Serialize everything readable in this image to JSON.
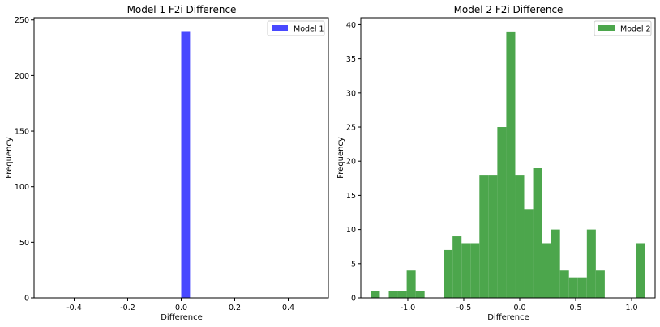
{
  "chart_data": [
    {
      "type": "bar",
      "title": "Model 1 F2i Difference",
      "xlabel": "Difference",
      "ylabel": "Frequency",
      "xlim": [
        -0.55,
        0.55
      ],
      "ylim": [
        0,
        252
      ],
      "xticks": [
        -0.4,
        -0.2,
        0.0,
        0.2,
        0.4
      ],
      "xtick_labels": [
        "-0.4",
        "-0.2",
        "0.0",
        "0.2",
        "0.4"
      ],
      "yticks": [
        0,
        50,
        100,
        150,
        200,
        250
      ],
      "ytick_labels": [
        "0",
        "50",
        "100",
        "150",
        "200",
        "250"
      ],
      "legend_position": "top-right",
      "series": [
        {
          "name": "Model 1",
          "color": "#4848ff",
          "bins": [
            {
              "x0": 0.0,
              "x1": 0.033,
              "count": 240
            }
          ]
        }
      ]
    },
    {
      "type": "bar",
      "title": "Model 2 F2i Difference",
      "xlabel": "Difference",
      "ylabel": "Frequency",
      "xlim": [
        -1.42,
        1.21
      ],
      "ylim": [
        0,
        41
      ],
      "xticks": [
        -1.0,
        -0.5,
        0.0,
        0.5,
        1.0
      ],
      "xtick_labels": [
        "-1.0",
        "-0.5",
        "0.0",
        "0.5",
        "1.0"
      ],
      "yticks": [
        0,
        5,
        10,
        15,
        20,
        25,
        30,
        35,
        40
      ],
      "ytick_labels": [
        "0",
        "5",
        "10",
        "15",
        "20",
        "25",
        "30",
        "35",
        "40"
      ],
      "legend_position": "top-right",
      "series": [
        {
          "name": "Model 2",
          "color": "#4ca64c",
          "bins": [
            {
              "x0": -1.33,
              "x1": -1.25,
              "count": 1
            },
            {
              "x0": -1.17,
              "x1": -1.09,
              "count": 1
            },
            {
              "x0": -1.09,
              "x1": -1.01,
              "count": 1
            },
            {
              "x0": -1.01,
              "x1": -0.93,
              "count": 4
            },
            {
              "x0": -0.93,
              "x1": -0.85,
              "count": 1
            },
            {
              "x0": -0.68,
              "x1": -0.6,
              "count": 7
            },
            {
              "x0": -0.6,
              "x1": -0.52,
              "count": 9
            },
            {
              "x0": -0.52,
              "x1": -0.44,
              "count": 8
            },
            {
              "x0": -0.44,
              "x1": -0.36,
              "count": 8
            },
            {
              "x0": -0.36,
              "x1": -0.28,
              "count": 18
            },
            {
              "x0": -0.28,
              "x1": -0.2,
              "count": 18
            },
            {
              "x0": -0.2,
              "x1": -0.12,
              "count": 25
            },
            {
              "x0": -0.12,
              "x1": -0.04,
              "count": 39
            },
            {
              "x0": -0.04,
              "x1": 0.04,
              "count": 18
            },
            {
              "x0": 0.04,
              "x1": 0.12,
              "count": 13
            },
            {
              "x0": 0.12,
              "x1": 0.2,
              "count": 19
            },
            {
              "x0": 0.2,
              "x1": 0.28,
              "count": 8
            },
            {
              "x0": 0.28,
              "x1": 0.36,
              "count": 10
            },
            {
              "x0": 0.36,
              "x1": 0.44,
              "count": 4
            },
            {
              "x0": 0.44,
              "x1": 0.52,
              "count": 3
            },
            {
              "x0": 0.52,
              "x1": 0.6,
              "count": 3
            },
            {
              "x0": 0.6,
              "x1": 0.68,
              "count": 10
            },
            {
              "x0": 0.68,
              "x1": 0.76,
              "count": 4
            },
            {
              "x0": 1.04,
              "x1": 1.12,
              "count": 8
            }
          ]
        }
      ]
    }
  ]
}
